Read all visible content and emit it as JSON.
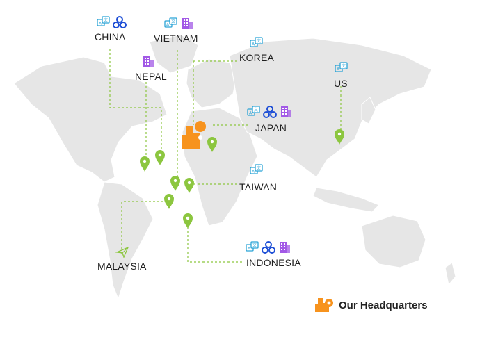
{
  "colors": {
    "land": "#e6e6e6",
    "border": "#ffffff",
    "pin": "#8cc63f",
    "route": "#8cc63f",
    "hq": "#f7931e",
    "translate_icon": "#29a3d6",
    "network_icon": "#1e4fd6",
    "building_icon": "#a259e6"
  },
  "locations": [
    {
      "id": "china",
      "label": "CHINA",
      "icons": [
        "translate-icon",
        "network-icon"
      ]
    },
    {
      "id": "vietnam",
      "label": "VIETNAM",
      "icons": [
        "translate-icon",
        "building-icon"
      ]
    },
    {
      "id": "korea",
      "label": "KOREA",
      "icons": [
        "translate-icon"
      ]
    },
    {
      "id": "nepal",
      "label": "NEPAL",
      "icons": [
        "building-icon"
      ]
    },
    {
      "id": "us",
      "label": "US",
      "icons": [
        "translate-icon"
      ]
    },
    {
      "id": "japan",
      "label": "JAPAN",
      "icons": [
        "translate-icon",
        "network-icon",
        "building-icon"
      ]
    },
    {
      "id": "taiwan",
      "label": "TAIWAN",
      "icons": [
        "translate-icon"
      ]
    },
    {
      "id": "malaysia",
      "label": "MALAYSIA",
      "icons": [
        "paper-plane-icon"
      ]
    },
    {
      "id": "indonesia",
      "label": "INDONESIA",
      "icons": [
        "translate-icon",
        "network-icon",
        "building-icon"
      ]
    }
  ],
  "legend": {
    "label": "Our Headquarters",
    "icon": "headquarters-icon"
  }
}
